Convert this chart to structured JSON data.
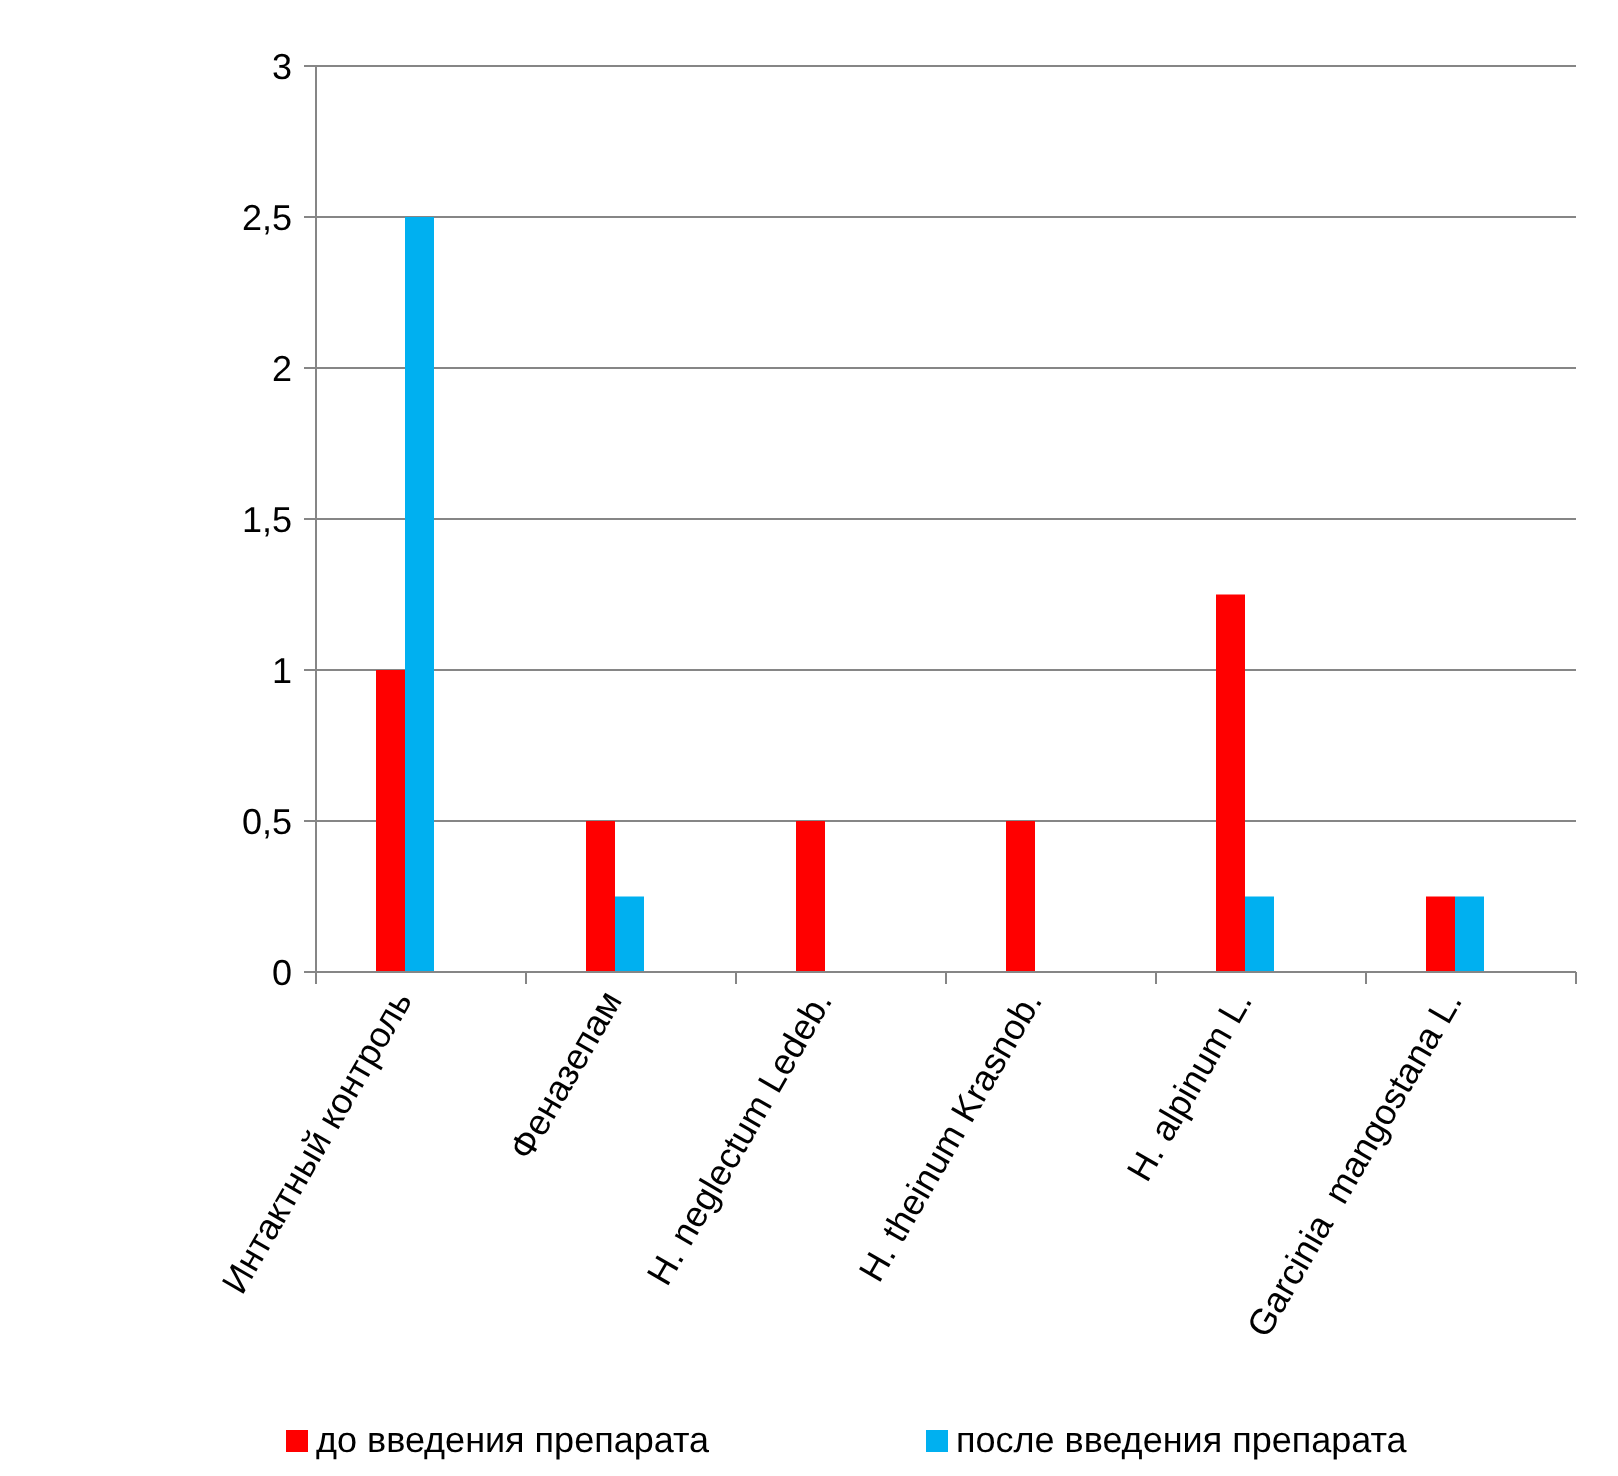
{
  "chart_data": {
    "type": "bar",
    "categories": [
      "Интактный контроль",
      "Феназепам",
      "H. neglectum Ledeb.",
      "H. theinum Krasnob.",
      "H. alpinum L.",
      "Garcinia  mangostana L."
    ],
    "series": [
      {
        "name": "до введения препарата",
        "color": "#ff0000",
        "values": [
          1,
          0.5,
          0.5,
          0.5,
          1.25,
          0.25
        ]
      },
      {
        "name": "после введения препарата",
        "color": "#00b0f0",
        "values": [
          2.5,
          0.25,
          0,
          0,
          0.25,
          0.25
        ]
      }
    ],
    "ylim": [
      0,
      3
    ],
    "yticks": [
      0,
      {
        "value": 0.5,
        "label": "0,5"
      },
      1,
      {
        "value": 1.5,
        "label": "1,5"
      },
      2,
      {
        "value": 2.5,
        "label": "2,5"
      },
      3
    ],
    "grid": "y",
    "legend": "bottom"
  }
}
